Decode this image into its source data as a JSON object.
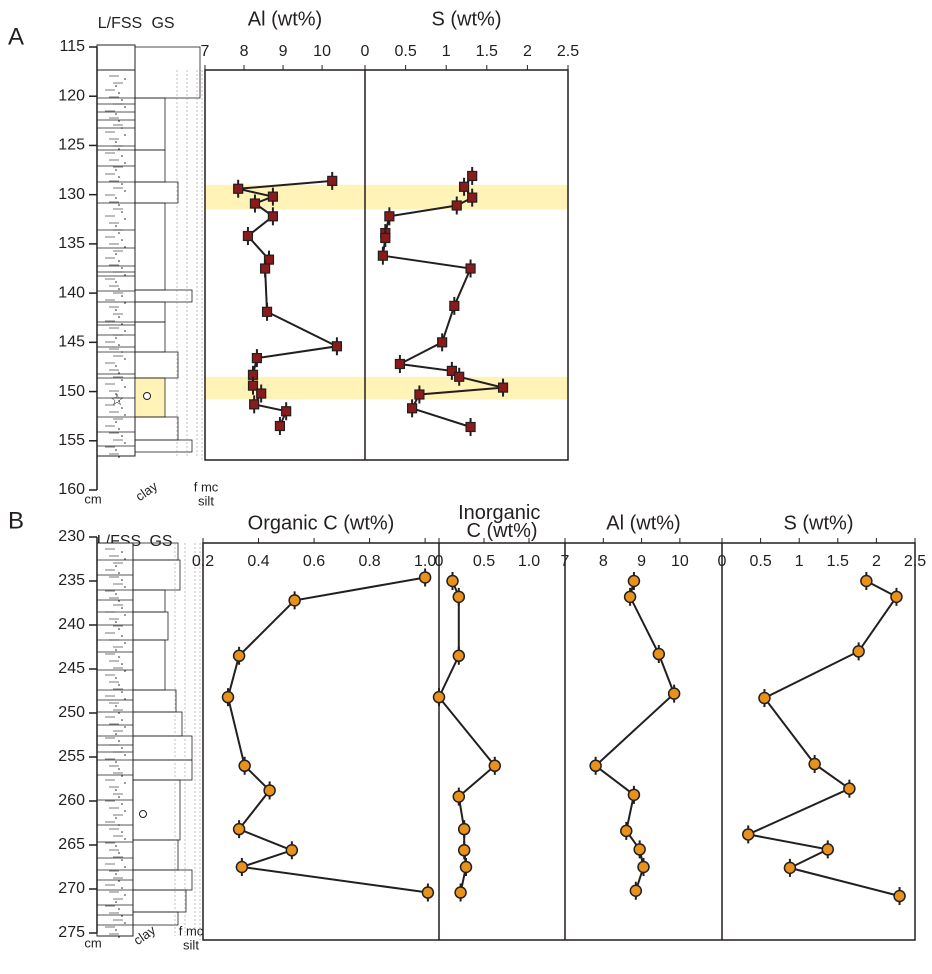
{
  "chart_data": [
    {
      "type": "line",
      "panel": "A",
      "depth_unit": "cm",
      "headers": [
        "L/FSS",
        "GS"
      ],
      "grain_labels": [
        "clay",
        "f mc",
        "silt"
      ],
      "ylim": [
        115,
        160
      ],
      "yticks": [
        115,
        120,
        125,
        130,
        135,
        140,
        145,
        150,
        155,
        160
      ],
      "highlights": [
        [
          129.0,
          131.5
        ],
        [
          148.5,
          150.8
        ]
      ],
      "highlight_color": "#fff3b8",
      "series": [
        {
          "name": "Al (wt%)",
          "color": "#8b1a1a",
          "marker": "square",
          "xlim": [
            7,
            11.1
          ],
          "xticks": [
            7,
            8,
            9,
            10
          ],
          "values": [
            10.26,
            7.85,
            8.74,
            8.28,
            8.74,
            8.1,
            8.64,
            8.54,
            8.59,
            10.38,
            8.33,
            8.23,
            8.23,
            8.44,
            8.26,
            9.08,
            8.92
          ],
          "depths": [
            128.6,
            129.4,
            130.2,
            130.9,
            132.2,
            134.2,
            136.6,
            137.5,
            141.9,
            145.4,
            146.6,
            148.3,
            149.4,
            150.2,
            151.3,
            152.0,
            153.5
          ]
        },
        {
          "name": "S (wt%)",
          "color": "#8b1a1a",
          "marker": "square",
          "xlim": [
            0,
            2.5
          ],
          "xticks": [
            0,
            0.5,
            1,
            1.5,
            2,
            2.5
          ],
          "values": [
            1.32,
            1.22,
            1.32,
            1.13,
            0.3,
            0.25,
            0.25,
            0.22,
            1.3,
            1.1,
            0.95,
            0.43,
            1.07,
            1.16,
            1.7,
            0.67,
            0.58,
            1.3
          ],
          "depths": [
            128.1,
            129.2,
            130.3,
            131.1,
            132.2,
            133.9,
            134.4,
            136.2,
            137.5,
            141.3,
            145.0,
            147.2,
            147.9,
            148.5,
            149.6,
            150.3,
            151.7,
            153.6
          ]
        }
      ]
    },
    {
      "type": "line",
      "panel": "B",
      "depth_unit": "cm",
      "headers": [
        "L/FSS",
        "GS"
      ],
      "grain_labels": [
        "clay",
        "f mc",
        "silt"
      ],
      "ylim": [
        230,
        275
      ],
      "yticks": [
        230,
        235,
        240,
        245,
        250,
        255,
        260,
        265,
        270,
        275
      ],
      "series": [
        {
          "name": "Organic C (wt%)",
          "color": "#e8921c",
          "marker": "circle",
          "xlim": [
            0.2,
            1.05
          ],
          "xticks": [
            0.2,
            0.4,
            0.6,
            0.8,
            {
              "value": 1,
              "label": "1.0"
            }
          ],
          "values": [
            1.0,
            0.53,
            0.33,
            0.29,
            0.35,
            0.44,
            0.33,
            0.52,
            0.34,
            1.01
          ],
          "depths": [
            234.6,
            237.2,
            243.5,
            248.2,
            256.0,
            258.8,
            263.2,
            265.6,
            267.5,
            270.4
          ]
        },
        {
          "name": "Inorganic C (wt%)",
          "color": "#e8921c",
          "marker": "circle",
          "xlim": [
            0,
            1.4
          ],
          "xticks": [
            0,
            0.5,
            {
              "value": 1,
              "label": "1.0"
            }
          ],
          "values": [
            0.15,
            0.22,
            0.22,
            0.0,
            0.62,
            0.22,
            0.28,
            0.28,
            0.3,
            0.24
          ],
          "depths": [
            235.0,
            236.8,
            243.5,
            248.2,
            256.0,
            259.5,
            263.2,
            265.6,
            267.5,
            270.4
          ]
        },
        {
          "name": "Al (wt%)",
          "color": "#e8921c",
          "marker": "circle",
          "xlim": [
            7,
            11.1
          ],
          "xticks": [
            7,
            8,
            9,
            10
          ],
          "values": [
            8.8,
            8.7,
            9.45,
            9.85,
            7.8,
            8.8,
            8.6,
            8.95,
            9.05,
            8.85
          ],
          "depths": [
            235.0,
            236.8,
            243.3,
            247.8,
            256.0,
            259.3,
            263.4,
            265.5,
            267.5,
            270.2
          ]
        },
        {
          "name": "S (wt%)",
          "color": "#e8921c",
          "marker": "circle",
          "xlim": [
            0,
            2.5
          ],
          "xticks": [
            0,
            0.5,
            1,
            1.5,
            2,
            2.5
          ],
          "values": [
            1.87,
            2.26,
            1.77,
            0.55,
            1.2,
            1.65,
            0.34,
            1.37,
            0.88,
            2.3
          ],
          "depths": [
            235.0,
            236.8,
            243.0,
            248.3,
            255.8,
            258.6,
            263.8,
            265.5,
            267.6,
            270.8
          ]
        }
      ]
    }
  ]
}
